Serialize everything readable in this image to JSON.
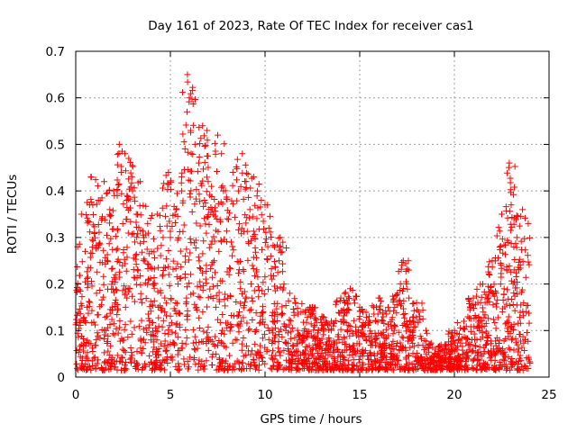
{
  "chart_data": {
    "type": "scatter",
    "title": "Day 161 of 2023, Rate Of TEC Index for receiver cas1",
    "xlabel": "GPS time / hours",
    "ylabel": "ROTI / TECUs",
    "xlim": [
      0,
      25
    ],
    "ylim": [
      0,
      0.7
    ],
    "xticks": [
      0,
      5,
      10,
      15,
      20,
      25
    ],
    "xtick_labels": [
      "0",
      "5",
      "10",
      "15",
      "20",
      "25"
    ],
    "yticks": [
      0,
      0.1,
      0.2,
      0.3,
      0.4,
      0.5,
      0.6,
      0.7
    ],
    "ytick_labels": [
      "0",
      "0.1",
      "0.2",
      "0.3",
      "0.4",
      "0.5",
      "0.6",
      "0.7"
    ],
    "grid": true,
    "marker": "plus",
    "color": "#ff0000",
    "series": [
      {
        "name": "ROTI",
        "x": [
          0.1,
          0.3,
          0.5,
          0.8,
          1.0,
          1.2,
          1.5,
          1.8,
          2.0,
          2.3,
          2.4,
          2.6,
          2.7,
          2.8,
          3.0,
          3.2,
          3.4,
          3.6,
          3.8,
          4.0,
          4.3,
          4.6,
          4.9,
          5.0,
          5.3,
          5.6,
          5.9,
          6.0,
          6.1,
          6.3,
          6.5,
          6.7,
          6.8,
          7.0,
          7.2,
          7.5,
          7.7,
          7.8,
          8.0,
          8.3,
          8.6,
          8.8,
          9.0,
          9.2,
          9.4,
          9.6,
          9.8,
          10.0,
          10.2,
          10.5,
          10.8,
          11.0,
          11.3,
          11.6,
          12.0,
          12.5,
          13.0,
          13.5,
          14.0,
          14.5,
          15.0,
          15.5,
          16.0,
          16.5,
          17.0,
          17.3,
          17.6,
          18.0,
          18.5,
          19.0,
          19.5,
          20.0,
          20.5,
          21.0,
          21.5,
          22.0,
          22.5,
          22.9,
          23.0,
          23.3,
          23.6,
          23.9,
          0.2,
          0.6,
          1.1,
          1.6,
          2.1,
          2.9,
          3.5,
          4.1,
          4.7,
          5.4,
          6.2,
          6.9,
          7.4,
          8.1,
          8.7,
          9.3,
          9.9,
          10.4,
          11.1,
          11.8,
          12.8,
          13.8,
          14.8,
          15.8,
          16.8,
          17.8,
          18.8,
          19.8,
          20.8,
          21.8,
          22.8,
          23.8
        ],
        "y": [
          0.28,
          0.35,
          0.27,
          0.43,
          0.31,
          0.38,
          0.42,
          0.36,
          0.4,
          0.5,
          0.44,
          0.48,
          0.38,
          0.47,
          0.4,
          0.35,
          0.42,
          0.3,
          0.33,
          0.27,
          0.35,
          0.22,
          0.44,
          0.3,
          0.36,
          0.4,
          0.65,
          0.6,
          0.48,
          0.5,
          0.46,
          0.54,
          0.38,
          0.42,
          0.36,
          0.52,
          0.48,
          0.4,
          0.34,
          0.44,
          0.4,
          0.48,
          0.42,
          0.36,
          0.43,
          0.4,
          0.38,
          0.37,
          0.32,
          0.28,
          0.3,
          0.2,
          0.18,
          0.16,
          0.14,
          0.15,
          0.13,
          0.12,
          0.17,
          0.19,
          0.15,
          0.13,
          0.17,
          0.15,
          0.18,
          0.25,
          0.17,
          0.16,
          0.1,
          0.06,
          0.07,
          0.1,
          0.12,
          0.17,
          0.2,
          0.25,
          0.35,
          0.46,
          0.37,
          0.3,
          0.36,
          0.33,
          0.12,
          0.15,
          0.18,
          0.1,
          0.22,
          0.12,
          0.16,
          0.09,
          0.14,
          0.2,
          0.18,
          0.24,
          0.15,
          0.22,
          0.19,
          0.17,
          0.14,
          0.12,
          0.1,
          0.08,
          0.07,
          0.06,
          0.05,
          0.08,
          0.06,
          0.09,
          0.04,
          0.05,
          0.07,
          0.09,
          0.12,
          0.14
        ]
      }
    ]
  }
}
